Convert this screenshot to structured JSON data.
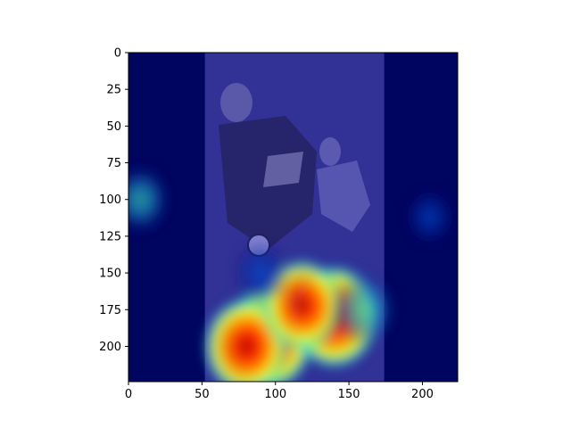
{
  "chart_data": {
    "type": "heatmap",
    "title": "",
    "xlabel": "",
    "ylabel": "",
    "xlim": [
      0,
      224
    ],
    "ylim": [
      224,
      0
    ],
    "x_ticks": [
      {
        "value": 0,
        "label": "0"
      },
      {
        "value": 50,
        "label": "50"
      },
      {
        "value": 100,
        "label": "100"
      },
      {
        "value": 150,
        "label": "150"
      },
      {
        "value": 200,
        "label": "200"
      }
    ],
    "y_ticks": [
      {
        "value": 0,
        "label": "0"
      },
      {
        "value": 25,
        "label": "25"
      },
      {
        "value": 50,
        "label": "50"
      },
      {
        "value": 75,
        "label": "75"
      },
      {
        "value": 100,
        "label": "100"
      },
      {
        "value": 125,
        "label": "125"
      },
      {
        "value": 150,
        "label": "150"
      },
      {
        "value": 175,
        "label": "175"
      },
      {
        "value": 200,
        "label": "200"
      }
    ],
    "colormap": "jet",
    "underlying_image": {
      "description_icon": "soccer-player-photo-icon",
      "x_range": [
        52,
        174
      ],
      "y_range": [
        0,
        224
      ]
    },
    "hotspots": [
      {
        "x": 95,
        "y": 195,
        "intensity": 0.98
      },
      {
        "x": 140,
        "y": 180,
        "intensity": 0.97
      },
      {
        "x": 80,
        "y": 200,
        "intensity": 0.88
      },
      {
        "x": 118,
        "y": 172,
        "intensity": 0.8
      },
      {
        "x": 160,
        "y": 175,
        "intensity": 0.55
      },
      {
        "x": 8,
        "y": 100,
        "intensity": 0.45
      },
      {
        "x": 205,
        "y": 112,
        "intensity": 0.28
      },
      {
        "x": 90,
        "y": 150,
        "intensity": 0.35
      }
    ]
  }
}
